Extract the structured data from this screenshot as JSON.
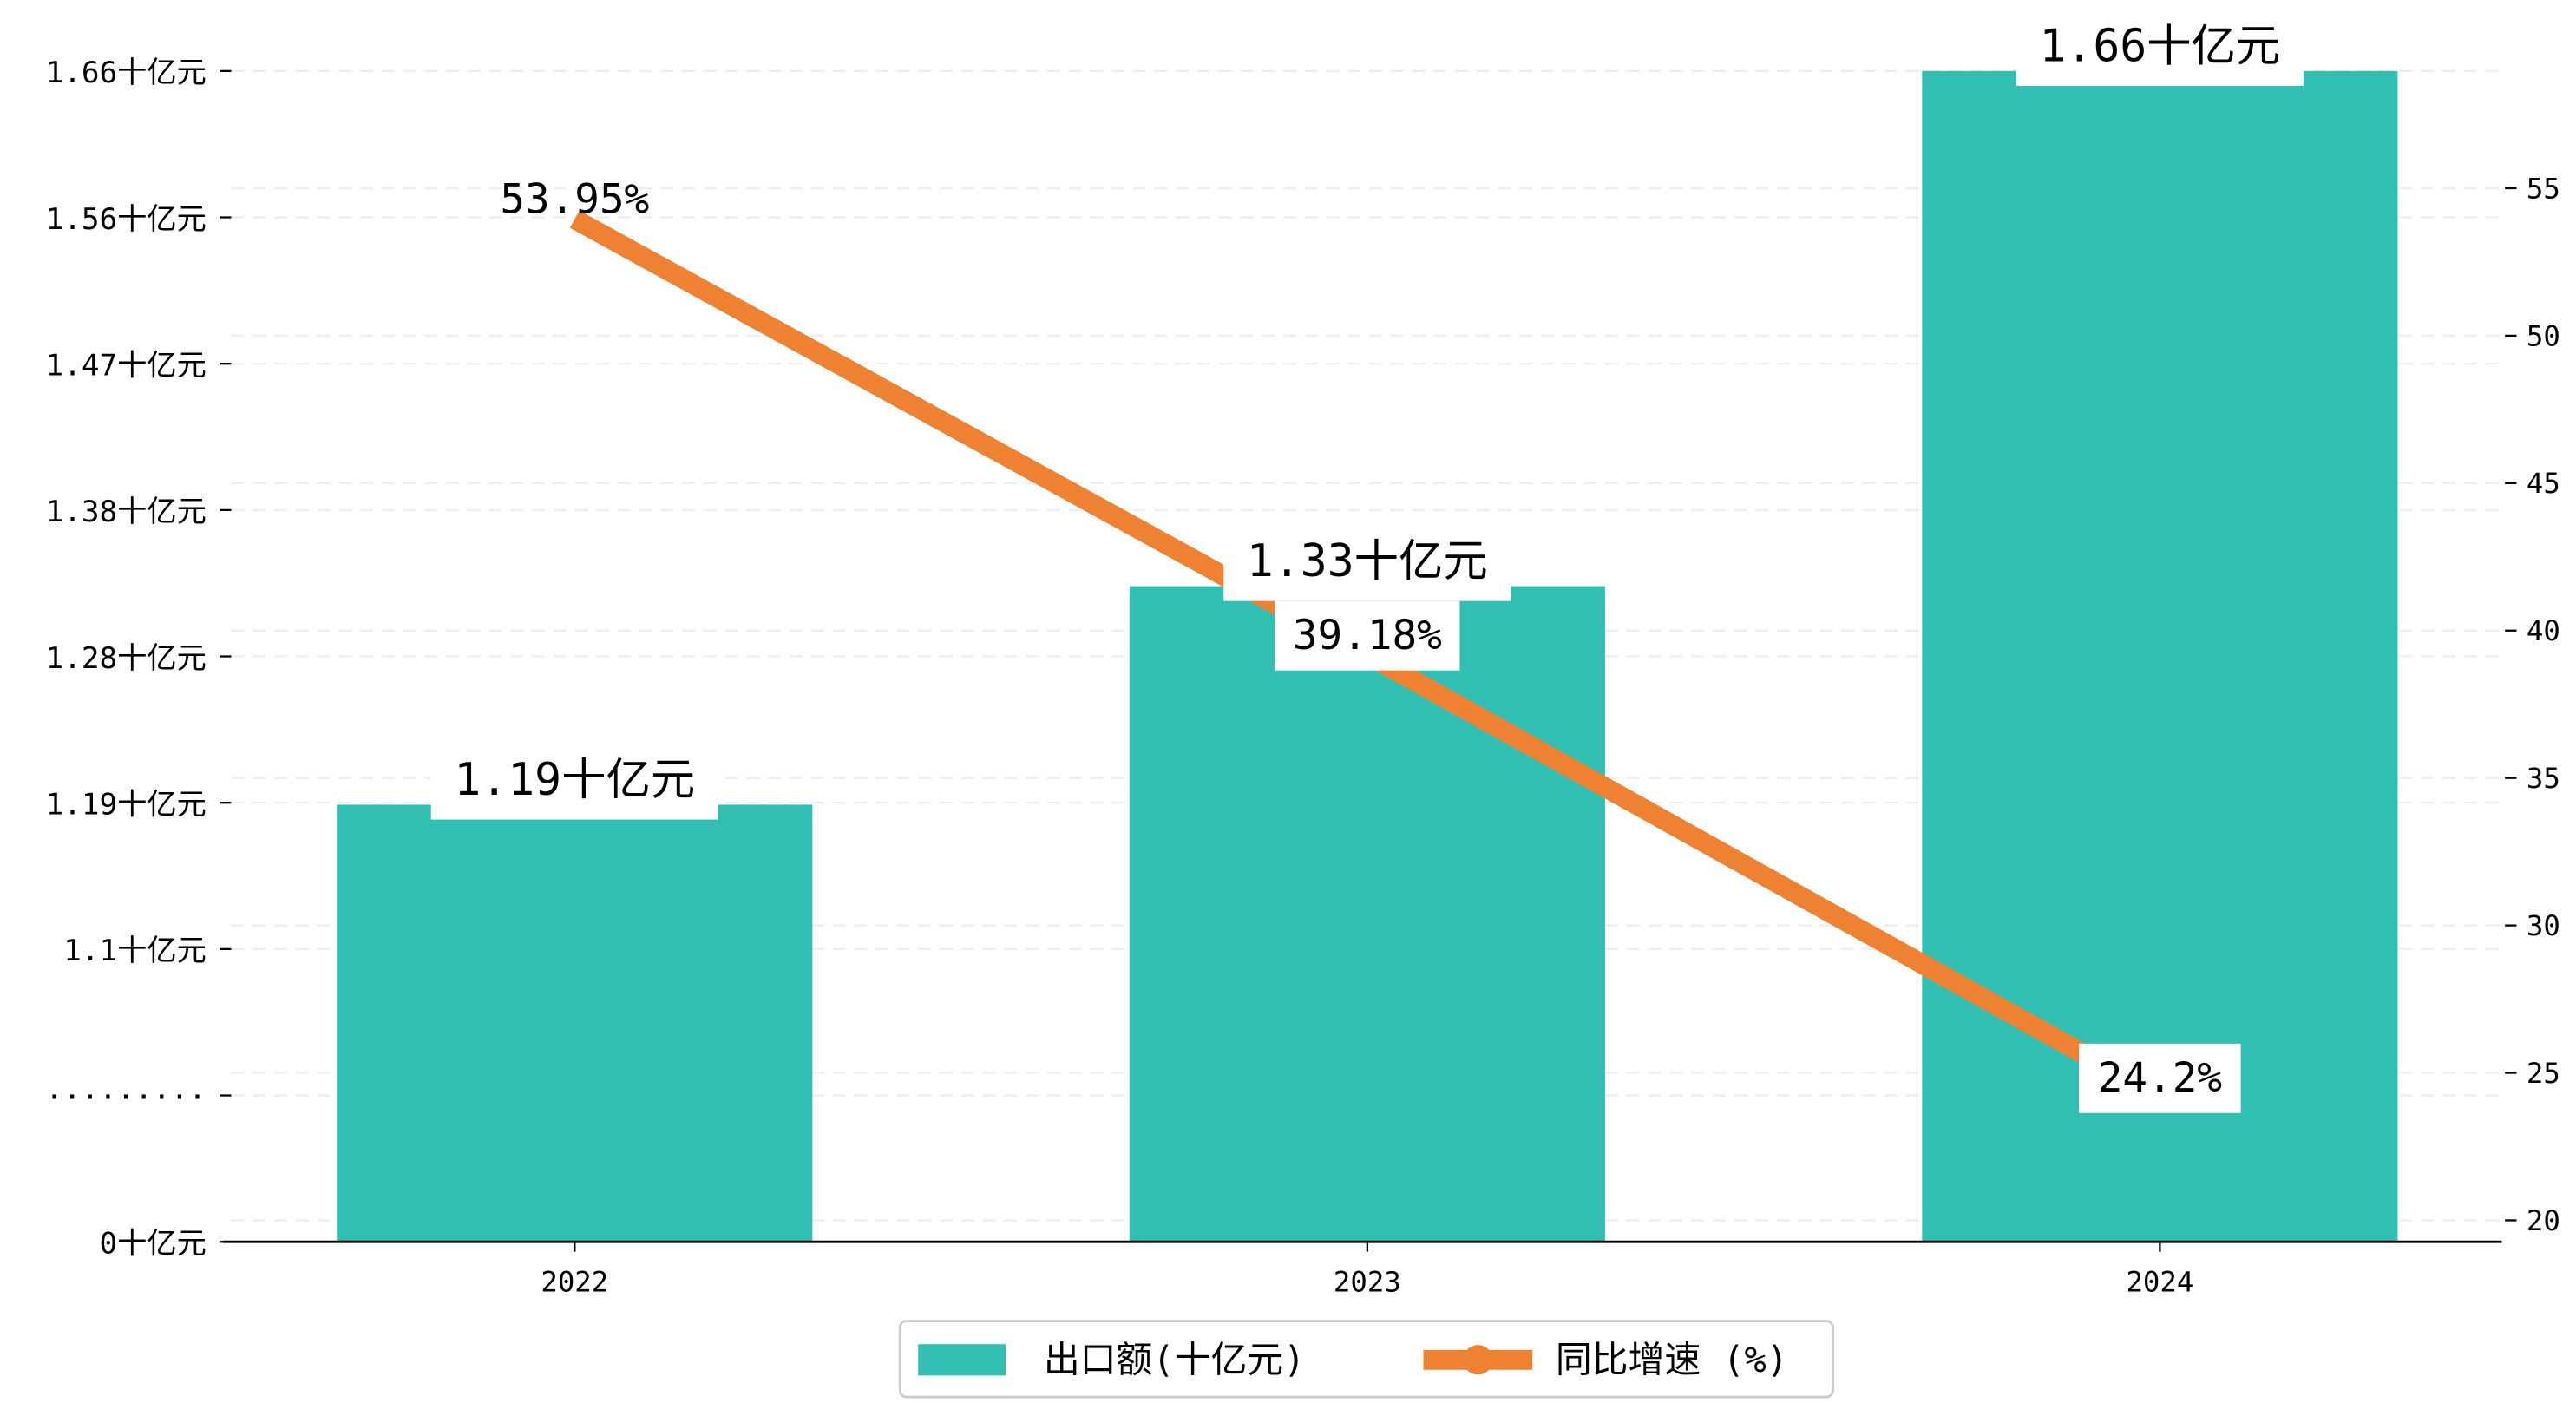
{
  "chart_data": {
    "type": "bar+line",
    "categories": [
      "2022",
      "2023",
      "2024"
    ],
    "series": [
      {
        "name": "出口额(十亿元)",
        "type": "bar",
        "axis": "left",
        "values": [
          1.19,
          1.33,
          1.66
        ],
        "labels": [
          "1.19十亿元",
          "1.33十亿元",
          "1.66十亿元"
        ],
        "color": "#32BFB3"
      },
      {
        "name": "同比增速 (%)",
        "type": "line",
        "axis": "right",
        "values": [
          53.95,
          39.18,
          24.2
        ],
        "labels": [
          "53.95%",
          "39.18%",
          "24.2%"
        ],
        "color": "#EE8232"
      }
    ],
    "left_axis": {
      "ticks": [
        "0十亿元",
        "·········",
        "1.1十亿元",
        "1.19十亿元",
        "1.28十亿元",
        "1.38十亿元",
        "1.47十亿元",
        "1.56十亿元",
        "1.66十亿元"
      ],
      "ylim": [
        0.91,
        1.66
      ]
    },
    "right_axis": {
      "ticks": [
        20,
        25,
        30,
        35,
        40,
        45,
        50,
        55
      ],
      "ylim": [
        19.5,
        59
      ]
    },
    "grid": true,
    "legend": {
      "placement": "bottom-center",
      "entries": [
        "出口额(十亿元)",
        "同比增速 (%)"
      ]
    }
  }
}
